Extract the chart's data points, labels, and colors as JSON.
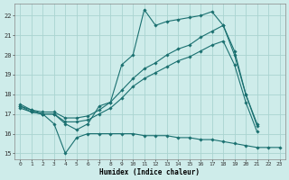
{
  "title": "",
  "xlabel": "Humidex (Indice chaleur)",
  "bg_color": "#ceecea",
  "grid_color": "#aad4d0",
  "line_color": "#1a7070",
  "xlim": [
    -0.5,
    23.5
  ],
  "ylim": [
    14.7,
    22.6
  ],
  "yticks": [
    15,
    16,
    17,
    18,
    19,
    20,
    21,
    22
  ],
  "xticks": [
    0,
    1,
    2,
    3,
    4,
    5,
    6,
    7,
    8,
    9,
    10,
    11,
    12,
    13,
    14,
    15,
    16,
    17,
    18,
    19,
    20,
    21,
    22,
    23
  ],
  "series": [
    {
      "x": [
        0,
        1,
        2,
        3,
        4,
        5,
        6,
        7,
        8,
        9,
        10,
        11,
        12,
        13,
        14,
        15,
        16,
        17,
        18,
        19,
        20,
        21
      ],
      "y": [
        17.5,
        17.2,
        17.0,
        17.0,
        16.5,
        16.2,
        16.5,
        17.4,
        17.6,
        19.5,
        20.0,
        22.3,
        21.5,
        21.7,
        21.8,
        21.9,
        22.0,
        22.2,
        21.5,
        20.2,
        18.0,
        16.5
      ]
    },
    {
      "x": [
        0,
        1,
        2,
        3,
        4,
        5,
        6,
        7,
        8,
        9,
        10,
        11,
        12,
        13,
        14,
        15,
        16,
        17,
        18,
        19,
        20,
        21
      ],
      "y": [
        17.4,
        17.2,
        17.1,
        17.1,
        16.8,
        16.8,
        16.9,
        17.2,
        17.6,
        18.2,
        18.8,
        19.3,
        19.6,
        20.0,
        20.3,
        20.5,
        20.9,
        21.2,
        21.5,
        20.0,
        18.0,
        16.4
      ]
    },
    {
      "x": [
        0,
        1,
        2,
        3,
        4,
        5,
        6,
        7,
        8,
        9,
        10,
        11,
        12,
        13,
        14,
        15,
        16,
        17,
        18,
        19,
        20,
        21
      ],
      "y": [
        17.3,
        17.1,
        17.0,
        17.0,
        16.6,
        16.6,
        16.7,
        17.0,
        17.3,
        17.8,
        18.4,
        18.8,
        19.1,
        19.4,
        19.7,
        19.9,
        20.2,
        20.5,
        20.7,
        19.5,
        17.6,
        16.1
      ]
    },
    {
      "x": [
        0,
        1,
        2,
        3,
        4,
        5,
        6,
        7,
        8,
        9,
        10,
        11,
        12,
        13,
        14,
        15,
        16,
        17,
        18,
        19,
        20,
        21,
        22,
        23
      ],
      "y": [
        17.4,
        17.1,
        17.0,
        16.5,
        15.0,
        15.8,
        16.0,
        16.0,
        16.0,
        16.0,
        16.0,
        15.9,
        15.9,
        15.9,
        15.8,
        15.8,
        15.7,
        15.7,
        15.6,
        15.5,
        15.4,
        15.3,
        15.3,
        15.3
      ]
    }
  ]
}
